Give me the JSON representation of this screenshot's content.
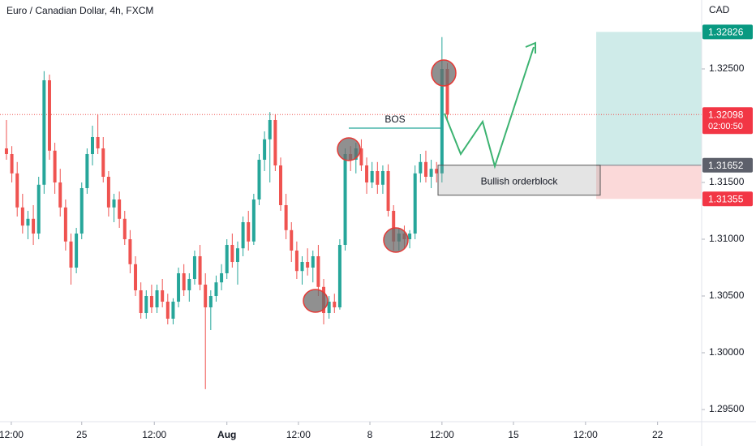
{
  "chart_data": {
    "type": "candlestick",
    "title": "Euro / Canadian Dollar, 4h, FXCM",
    "currency": "CAD",
    "up_color": "#26a69a",
    "down_color": "#ef5350",
    "candles": [
      [
        1.318,
        1.3205,
        1.317,
        1.3175
      ],
      [
        1.3175,
        1.3182,
        1.315,
        1.3158
      ],
      [
        1.3158,
        1.3168,
        1.312,
        1.3128
      ],
      [
        1.3128,
        1.314,
        1.3105,
        1.3112
      ],
      [
        1.3112,
        1.3125,
        1.31,
        1.3118
      ],
      [
        1.3118,
        1.313,
        1.3095,
        1.3105
      ],
      [
        1.3105,
        1.3155,
        1.31,
        1.3148
      ],
      [
        1.3148,
        1.3248,
        1.314,
        1.324
      ],
      [
        1.324,
        1.3245,
        1.317,
        1.3178
      ],
      [
        1.3178,
        1.3185,
        1.314,
        1.315
      ],
      [
        1.315,
        1.3162,
        1.312,
        1.3128
      ],
      [
        1.3128,
        1.3135,
        1.309,
        1.3098
      ],
      [
        1.3098,
        1.3105,
        1.306,
        1.3075
      ],
      [
        1.3075,
        1.311,
        1.307,
        1.3105
      ],
      [
        1.3105,
        1.315,
        1.31,
        1.3145
      ],
      [
        1.3145,
        1.318,
        1.314,
        1.3175
      ],
      [
        1.3175,
        1.32,
        1.3165,
        1.319
      ],
      [
        1.319,
        1.321,
        1.3175,
        1.318
      ],
      [
        1.318,
        1.319,
        1.315,
        1.3155
      ],
      [
        1.3155,
        1.316,
        1.312,
        1.3128
      ],
      [
        1.3128,
        1.314,
        1.3115,
        1.3135
      ],
      [
        1.3135,
        1.3142,
        1.311,
        1.3118
      ],
      [
        1.3118,
        1.3125,
        1.3095,
        1.31
      ],
      [
        1.31,
        1.3108,
        1.307,
        1.3078
      ],
      [
        1.3078,
        1.3085,
        1.305,
        1.3055
      ],
      [
        1.3055,
        1.3062,
        1.303,
        1.3035
      ],
      [
        1.3035,
        1.3055,
        1.303,
        1.305
      ],
      [
        1.305,
        1.306,
        1.3035,
        1.304
      ],
      [
        1.304,
        1.306,
        1.3035,
        1.3055
      ],
      [
        1.3055,
        1.3065,
        1.304,
        1.3045
      ],
      [
        1.3045,
        1.3052,
        1.3025,
        1.303
      ],
      [
        1.303,
        1.3048,
        1.3025,
        1.3045
      ],
      [
        1.3045,
        1.3075,
        1.304,
        1.307
      ],
      [
        1.307,
        1.3078,
        1.305,
        1.3055
      ],
      [
        1.3055,
        1.307,
        1.3045,
        1.3065
      ],
      [
        1.3065,
        1.309,
        1.306,
        1.3085
      ],
      [
        1.3085,
        1.3095,
        1.3055,
        1.306
      ],
      [
        1.306,
        1.307,
        1.2968,
        1.304
      ],
      [
        1.304,
        1.3055,
        1.302,
        1.305
      ],
      [
        1.305,
        1.3068,
        1.3045,
        1.3062
      ],
      [
        1.3062,
        1.3078,
        1.3055,
        1.307
      ],
      [
        1.307,
        1.31,
        1.3065,
        1.3095
      ],
      [
        1.3095,
        1.3105,
        1.3075,
        1.308
      ],
      [
        1.308,
        1.3098,
        1.306,
        1.3092
      ],
      [
        1.3092,
        1.312,
        1.3085,
        1.3115
      ],
      [
        1.3115,
        1.3125,
        1.309,
        1.3098
      ],
      [
        1.3098,
        1.314,
        1.3095,
        1.3135
      ],
      [
        1.3135,
        1.3175,
        1.313,
        1.317
      ],
      [
        1.317,
        1.3195,
        1.316,
        1.3188
      ],
      [
        1.3188,
        1.3212,
        1.315,
        1.3205
      ],
      [
        1.3205,
        1.321,
        1.316,
        1.3165
      ],
      [
        1.3165,
        1.3172,
        1.3125,
        1.313
      ],
      [
        1.313,
        1.314,
        1.31,
        1.3108
      ],
      [
        1.3108,
        1.3115,
        1.308,
        1.309
      ],
      [
        1.309,
        1.3098,
        1.3065,
        1.3072
      ],
      [
        1.3072,
        1.3085,
        1.306,
        1.308
      ],
      [
        1.308,
        1.3092,
        1.3068,
        1.3075
      ],
      [
        1.3075,
        1.309,
        1.3062,
        1.3085
      ],
      [
        1.3085,
        1.3095,
        1.305,
        1.3058
      ],
      [
        1.3058,
        1.3065,
        1.3025,
        1.3035
      ],
      [
        1.3035,
        1.305,
        1.303,
        1.3045
      ],
      [
        1.3045,
        1.3052,
        1.3035,
        1.304
      ],
      [
        1.304,
        1.31,
        1.3038,
        1.3095
      ],
      [
        1.3095,
        1.318,
        1.309,
        1.3175
      ],
      [
        1.3175,
        1.3182,
        1.316,
        1.317
      ],
      [
        1.317,
        1.3185,
        1.3158,
        1.318
      ],
      [
        1.318,
        1.3188,
        1.316,
        1.3165
      ],
      [
        1.3165,
        1.3172,
        1.314,
        1.315
      ],
      [
        1.315,
        1.3168,
        1.3145,
        1.316
      ],
      [
        1.316,
        1.3168,
        1.314,
        1.3148
      ],
      [
        1.3148,
        1.3165,
        1.314,
        1.316
      ],
      [
        1.316,
        1.3166,
        1.312,
        1.3125
      ],
      [
        1.3125,
        1.313,
        1.309,
        1.3098
      ],
      [
        1.3098,
        1.311,
        1.309,
        1.3105
      ],
      [
        1.3105,
        1.3112,
        1.3092,
        1.31
      ],
      [
        1.31,
        1.3108,
        1.3092,
        1.3105
      ],
      [
        1.3105,
        1.3165,
        1.31,
        1.3158
      ],
      [
        1.3158,
        1.3175,
        1.315,
        1.3168
      ],
      [
        1.3168,
        1.3178,
        1.315,
        1.3155
      ],
      [
        1.3155,
        1.317,
        1.3145,
        1.3162
      ],
      [
        1.3162,
        1.3168,
        1.315,
        1.3158
      ],
      [
        1.3158,
        1.3278,
        1.315,
        1.325
      ],
      [
        1.325,
        1.3255,
        1.3205,
        1.32098
      ]
    ],
    "xlim": [
      -1.2,
      129.3
    ],
    "xticks": [
      {
        "value": 0.9,
        "label": "12:00"
      },
      {
        "value": 14,
        "label": "25"
      },
      {
        "value": 27.5,
        "label": "12:00"
      },
      {
        "value": 41,
        "label": "Aug"
      },
      {
        "value": 54.3,
        "label": "12:00"
      },
      {
        "value": 67.6,
        "label": "8"
      },
      {
        "value": 81,
        "label": "12:00"
      },
      {
        "value": 94.3,
        "label": "15"
      },
      {
        "value": 107.7,
        "label": "12:00"
      },
      {
        "value": 121.1,
        "label": "22"
      }
    ],
    "ylim": [
      1.29393,
      1.33107
    ],
    "yticks": [
      {
        "value": 1.295,
        "label": "1.29500"
      },
      {
        "value": 1.3,
        "label": "1.30000"
      },
      {
        "value": 1.305,
        "label": "1.30500"
      },
      {
        "value": 1.31,
        "label": "1.31000"
      },
      {
        "value": 1.315,
        "label": "1.31500"
      },
      {
        "value": 1.325,
        "label": "1.32500"
      }
    ],
    "countdown": "02:00:50",
    "position": {
      "target": 1.32826,
      "entry": 1.31652,
      "stop": 1.31355
    },
    "annotations": {
      "bos": "BOS",
      "orderblock": "Bullish orderblock"
    }
  }
}
